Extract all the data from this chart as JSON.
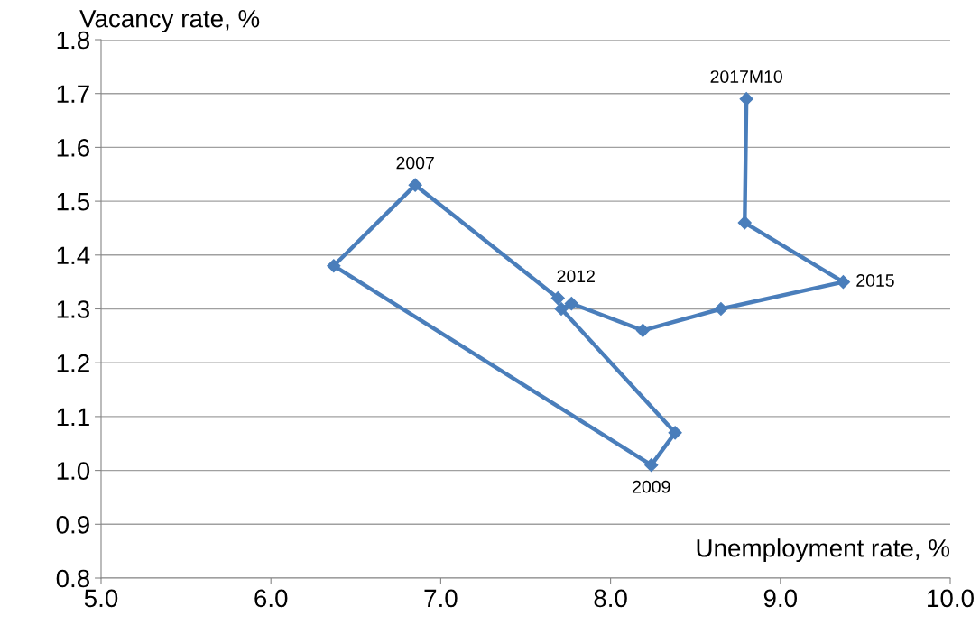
{
  "chart_data": {
    "type": "line",
    "xlabel": "Unemployment rate, %",
    "ylabel": "Vacancy rate, %",
    "series": [
      {
        "color": "#4a7ebb",
        "x": [
          7.69,
          6.85,
          6.37,
          8.24,
          8.38,
          7.71,
          7.77,
          8.19,
          8.65,
          9.37,
          8.79,
          8.8
        ],
        "values": [
          1.32,
          1.53,
          1.38,
          1.01,
          1.07,
          1.3,
          1.31,
          1.26,
          1.3,
          1.35,
          1.46,
          1.69
        ]
      }
    ],
    "annotations": [
      {
        "text": "2007",
        "x": 6.85,
        "y": 1.53
      },
      {
        "text": "2012",
        "x": 7.77,
        "y": 1.31
      },
      {
        "text": "2009",
        "x": 8.24,
        "y": 1.01
      },
      {
        "text": "2015",
        "x": 9.37,
        "y": 1.35
      },
      {
        "text": "2017M10",
        "x": 8.8,
        "y": 1.69
      }
    ],
    "xlim": [
      5.0,
      10.0
    ],
    "xticks": [
      {
        "value": 5,
        "label": "5.0"
      },
      {
        "value": 6,
        "label": "6.0"
      },
      {
        "value": 7,
        "label": "7.0"
      },
      {
        "value": 8,
        "label": "8.0"
      },
      {
        "value": 9,
        "label": "9.0"
      },
      {
        "value": 10,
        "label": "10.0"
      }
    ],
    "ylim": [
      0.8,
      1.8
    ],
    "yticks": [
      0.8,
      0.9,
      {
        "value": 1,
        "label": "1.0"
      },
      1.1,
      1.2,
      1.3,
      1.4,
      1.5,
      1.6,
      1.7,
      1.8
    ],
    "grid": "y",
    "marker": "diamond",
    "line_style": "solid"
  }
}
